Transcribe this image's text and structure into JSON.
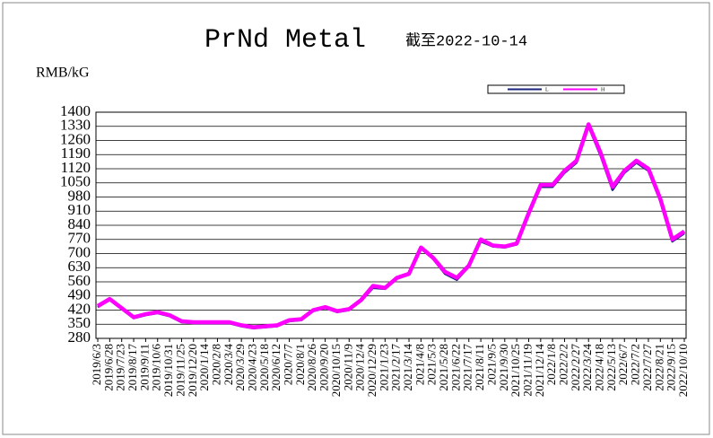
{
  "chart_data": {
    "type": "line",
    "title": "PrNd Metal",
    "subtitle": "截至2022-10-14",
    "y_label": "RMB/kG",
    "categories": [
      "2019/6/3",
      "2019/6/28",
      "2019/7/23",
      "2019/8/17",
      "2019/9/11",
      "2019/10/6",
      "2019/10/31",
      "2019/11/25",
      "2019/12/20",
      "2020/1/14",
      "2020/2/8",
      "2020/3/4",
      "2020/3/29",
      "2020/4/23",
      "2020/5/18",
      "2020/6/12",
      "2020/7/7",
      "2020/8/1",
      "2020/8/26",
      "2020/9/20",
      "2020/10/15",
      "2020/11/9",
      "2020/12/4",
      "2020/12/29",
      "2021/1/23",
      "2021/2/17",
      "2021/3/14",
      "2021/4/8",
      "2021/5/3",
      "2021/5/28",
      "2021/6/22",
      "2021/7/17",
      "2021/8/11",
      "2021/9/5",
      "2021/9/30",
      "2021/10/25",
      "2021/11/19",
      "2021/12/14",
      "2022/1/8",
      "2022/2/2",
      "2022/2/27",
      "2022/3/24",
      "2022/4/18",
      "2022/5/13",
      "2022/6/7",
      "2022/7/2",
      "2022/7/27",
      "2022/8/21",
      "2022/9/15",
      "2022/10/10"
    ],
    "series": [
      {
        "name": "L",
        "color": "#1a237e",
        "values": [
          435,
          470,
          425,
          380,
          395,
          405,
          390,
          360,
          355,
          355,
          355,
          355,
          340,
          330,
          335,
          340,
          365,
          370,
          415,
          430,
          410,
          420,
          465,
          530,
          525,
          575,
          595,
          725,
          675,
          600,
          570,
          635,
          760,
          735,
          730,
          745,
          890,
          1030,
          1030,
          1100,
          1150,
          1330,
          1185,
          1015,
          1100,
          1150,
          1110,
          960,
          760,
          800
        ]
      },
      {
        "name": "H",
        "color": "#ff00ff",
        "values": [
          440,
          475,
          430,
          385,
          400,
          410,
          395,
          365,
          360,
          360,
          360,
          360,
          345,
          335,
          340,
          345,
          370,
          375,
          420,
          435,
          415,
          425,
          470,
          540,
          530,
          580,
          600,
          730,
          680,
          610,
          580,
          640,
          770,
          740,
          735,
          750,
          900,
          1040,
          1040,
          1110,
          1160,
          1340,
          1200,
          1030,
          1110,
          1160,
          1120,
          970,
          770,
          810
        ]
      }
    ],
    "ylim": [
      280,
      1400
    ],
    "yticks": [
      280,
      350,
      420,
      490,
      560,
      630,
      700,
      770,
      840,
      910,
      980,
      1050,
      1120,
      1190,
      1260,
      1330,
      1400
    ],
    "grid": true,
    "legend": "top-right"
  }
}
